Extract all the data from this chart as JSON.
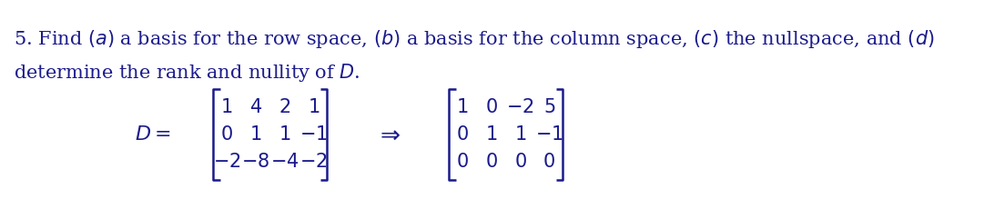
{
  "background_color": "#ffffff",
  "text_color": "#1a1a8c",
  "problem_text_line1": "5. Find $(a)$ a basis for the row space, $(b)$ a basis for the column space, $(c)$ the nullspace, and $(d)$",
  "problem_text_line2": "determine the rank and nullity of $D$.",
  "matrix_D": [
    [
      "1",
      "4",
      "2",
      "1"
    ],
    [
      "0",
      "1",
      "1",
      "-1"
    ],
    [
      "-2",
      "-8",
      "-4",
      "-2"
    ]
  ],
  "matrix_rref": [
    [
      "1",
      "0",
      "-2",
      "5"
    ],
    [
      "0",
      "1",
      "1",
      "-1"
    ],
    [
      "0",
      "0",
      "0",
      "0"
    ]
  ],
  "fontsize_text": 15,
  "fontsize_matrix": 15
}
